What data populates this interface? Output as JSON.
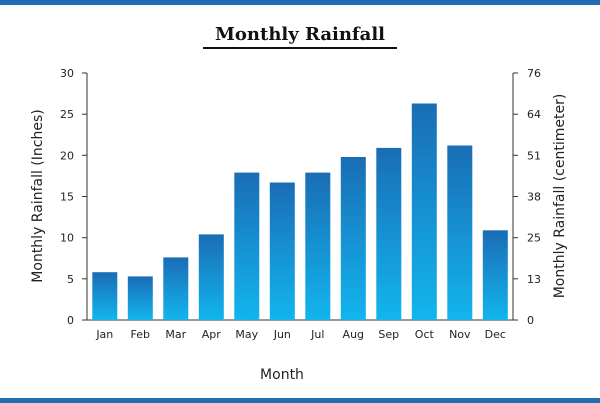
{
  "title": "Monthly Rainfall",
  "chart_data": {
    "type": "bar",
    "title": "Monthly Rainfall",
    "xlabel": "Month",
    "ylabel": "Monthly Rainfall (Inches)",
    "y2label": "Monthly Rainfall (centimeter)",
    "categories": [
      "Jan",
      "Feb",
      "Mar",
      "Apr",
      "May",
      "Jun",
      "Jul",
      "Aug",
      "Sep",
      "Oct",
      "Nov",
      "Dec"
    ],
    "values": [
      5.8,
      5.3,
      7.6,
      10.4,
      17.9,
      16.7,
      17.9,
      19.8,
      20.9,
      26.3,
      21.2,
      10.9
    ],
    "ylim": [
      0,
      30
    ],
    "yticks": [
      "0",
      "5",
      "10",
      "15",
      "20",
      "25",
      "30"
    ],
    "y2ticks": [
      "0",
      "13",
      "25",
      "38",
      "51",
      "64",
      "76"
    ],
    "grid": false,
    "bar_color_top": "#1a6db5",
    "bar_color_bottom": "#12b5ee"
  }
}
